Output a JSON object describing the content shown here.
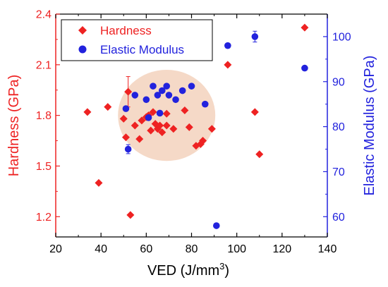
{
  "chart_data": {
    "type": "scatter",
    "xlabel": "VED (J/mm",
    "xlabel_sup": "3",
    "xlabel_tail": ")",
    "ylabel_left": "Hardness (GPa)",
    "ylabel_right": "Elastic Modulus (GPa)",
    "xlim": [
      20,
      140
    ],
    "ylim_left": [
      1.08,
      2.4
    ],
    "ylim_right": [
      55.5,
      105
    ],
    "x_ticks": [
      "20",
      "40",
      "60",
      "80",
      "100",
      "120",
      "140"
    ],
    "y_left_ticks": [
      "1.2",
      "1.5",
      "1.8",
      "2.1",
      "2.4"
    ],
    "y_right_ticks": [
      "60",
      "70",
      "80",
      "90",
      "100"
    ],
    "legend_position": "top-left",
    "colors": {
      "hardness": "#ee2222",
      "modulus": "#2222dd",
      "ellipse": "#f3d2bd",
      "axis_left": "#ee2222",
      "axis_right": "#2222dd"
    },
    "highlight_region": {
      "cx": 69,
      "cy_left": 1.8,
      "rx": 21.5,
      "ry_left": 0.27
    },
    "series": [
      {
        "name": "Hardness",
        "axis": "left",
        "marker": "diamond",
        "points": [
          {
            "x": 34,
            "y": 1.82
          },
          {
            "x": 39,
            "y": 1.4
          },
          {
            "x": 43,
            "y": 1.85
          },
          {
            "x": 50,
            "y": 1.78
          },
          {
            "x": 51,
            "y": 1.67
          },
          {
            "x": 52,
            "y": 1.94,
            "err": 0.09
          },
          {
            "x": 53,
            "y": 1.21
          },
          {
            "x": 55,
            "y": 1.74
          },
          {
            "x": 57,
            "y": 1.66
          },
          {
            "x": 58,
            "y": 1.77
          },
          {
            "x": 60,
            "y": 1.79
          },
          {
            "x": 61,
            "y": 1.8
          },
          {
            "x": 62,
            "y": 1.71
          },
          {
            "x": 63,
            "y": 1.82
          },
          {
            "x": 64,
            "y": 1.75
          },
          {
            "x": 65,
            "y": 1.72
          },
          {
            "x": 66,
            "y": 1.74
          },
          {
            "x": 67,
            "y": 1.7
          },
          {
            "x": 69,
            "y": 1.74
          },
          {
            "x": 69,
            "y": 1.81
          },
          {
            "x": 72,
            "y": 1.72
          },
          {
            "x": 77,
            "y": 1.83
          },
          {
            "x": 79,
            "y": 1.73
          },
          {
            "x": 82,
            "y": 1.62
          },
          {
            "x": 84,
            "y": 1.63
          },
          {
            "x": 85,
            "y": 1.65
          },
          {
            "x": 89,
            "y": 1.72
          },
          {
            "x": 96,
            "y": 2.1
          },
          {
            "x": 108,
            "y": 1.82
          },
          {
            "x": 110,
            "y": 1.57
          },
          {
            "x": 130,
            "y": 2.32
          }
        ]
      },
      {
        "name": "Elastic Modulus",
        "axis": "right",
        "marker": "circle",
        "points": [
          {
            "x": 51,
            "y": 84
          },
          {
            "x": 52,
            "y": 75,
            "err": 1.0
          },
          {
            "x": 55,
            "y": 87
          },
          {
            "x": 60,
            "y": 86
          },
          {
            "x": 61,
            "y": 82
          },
          {
            "x": 63,
            "y": 89
          },
          {
            "x": 65,
            "y": 87
          },
          {
            "x": 66,
            "y": 83
          },
          {
            "x": 67,
            "y": 88
          },
          {
            "x": 69,
            "y": 89
          },
          {
            "x": 70,
            "y": 87
          },
          {
            "x": 73,
            "y": 86
          },
          {
            "x": 76,
            "y": 88
          },
          {
            "x": 80,
            "y": 89
          },
          {
            "x": 86,
            "y": 85
          },
          {
            "x": 91,
            "y": 58
          },
          {
            "x": 96,
            "y": 98
          },
          {
            "x": 108,
            "y": 100,
            "err": 1.2
          },
          {
            "x": 130,
            "y": 93
          }
        ]
      }
    ]
  }
}
